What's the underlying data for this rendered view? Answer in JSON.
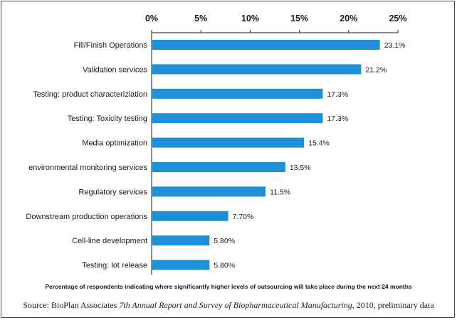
{
  "chart_data": {
    "type": "bar",
    "orientation": "horizontal",
    "categories": [
      "Fill/Finish Operations",
      "Validation services",
      "Testing: product characteriziation",
      "Testing: Toxicity testing",
      "Media optimization",
      "environmental monitoring services",
      "Regulatory services",
      "Downstream production operations",
      "Cell-line development",
      "Testing: lot release"
    ],
    "values": [
      23.1,
      21.2,
      17.3,
      17.3,
      15.4,
      13.5,
      11.5,
      7.7,
      5.8,
      5.8
    ],
    "value_labels": [
      "23.1%",
      "21.2%",
      "17.3%",
      "17.3%",
      "15.4%",
      "13.5%",
      "11.5%",
      "7.70%",
      "5.80%",
      "5.80%"
    ],
    "xlim": [
      0,
      25
    ],
    "xticks": [
      0,
      5,
      10,
      15,
      20,
      25
    ],
    "xtick_labels": [
      "0%",
      "5%",
      "10%",
      "15%",
      "20%",
      "25%"
    ],
    "axis_position": "top",
    "grid": false,
    "bar_color": "#1f8fd6",
    "caption": "Percentage of respondents indicating where significantly higher levels of  outsourcing will take place during the next 24 months"
  },
  "source": {
    "prefix": "Source: BioPlan Associates ",
    "title_italic": "7th Annual Report and Survey of Biopharmaceutical Manufacturing",
    "suffix": ", 2010, preliminary data"
  }
}
